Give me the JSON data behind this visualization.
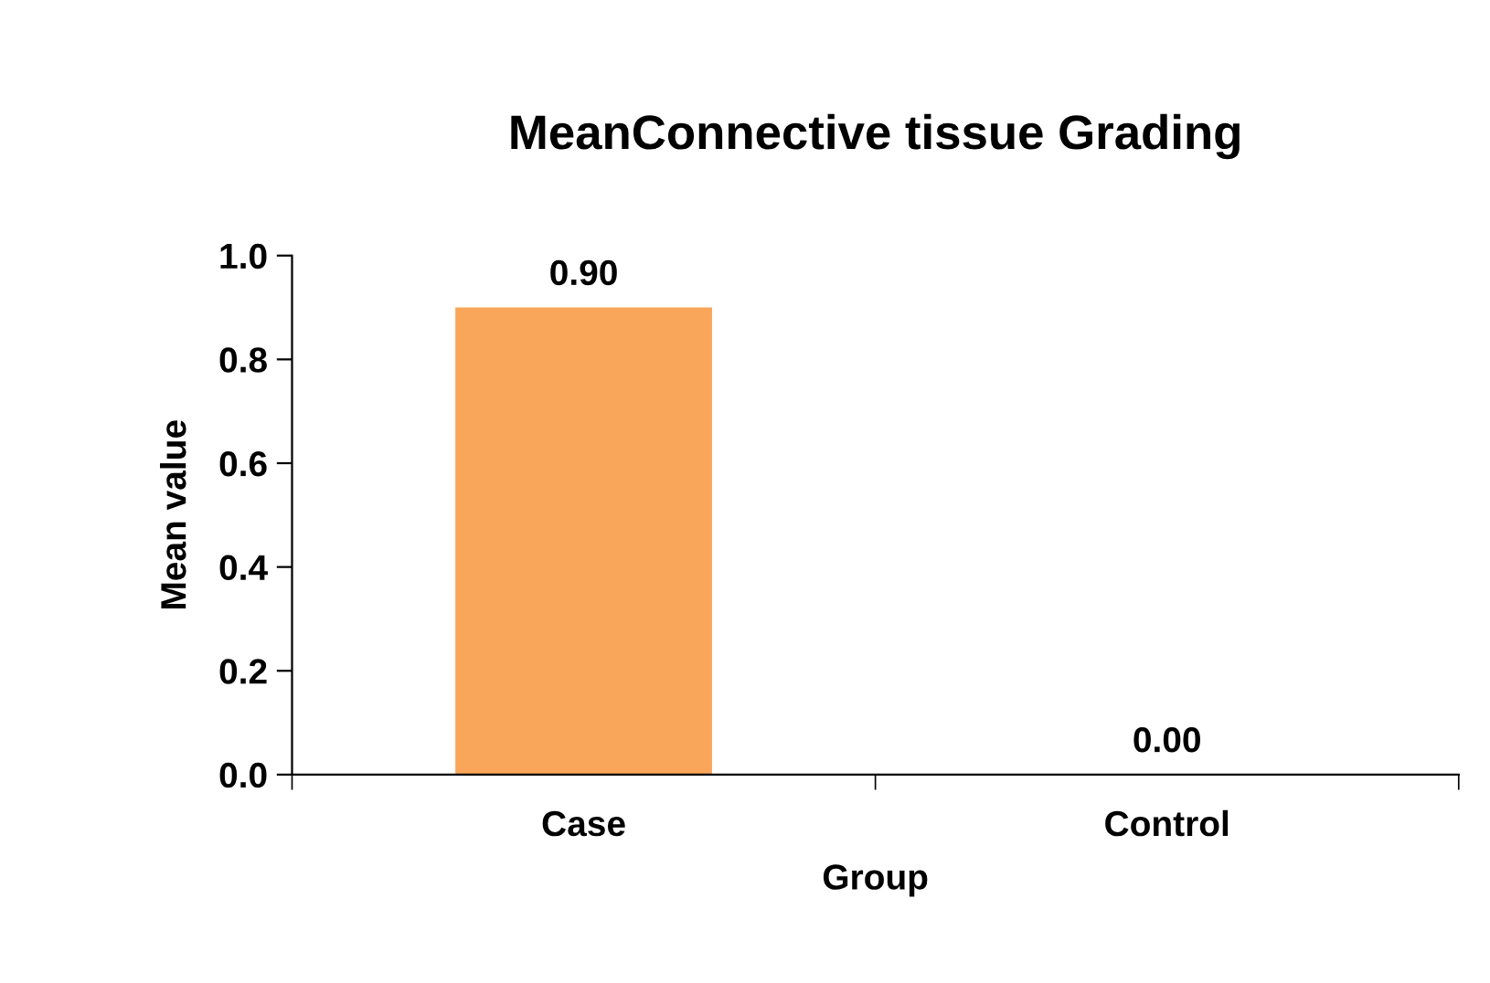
{
  "chart_data": {
    "type": "bar",
    "title": "MeanConnective tissue Grading",
    "xlabel": "Group",
    "ylabel": "Mean value",
    "categories": [
      "Case",
      "Control"
    ],
    "values": [
      0.9,
      0.0
    ],
    "color": "#f9a65a",
    "value_labels": [
      "0.90",
      "0.00"
    ],
    "ylim": [
      0,
      1.0
    ],
    "yticks": [
      {
        "value": 0,
        "label": "0.0"
      },
      {
        "value": 0.2,
        "label": "0.2"
      },
      {
        "value": 0.4,
        "label": "0.4"
      },
      {
        "value": 0.6,
        "label": "0.6"
      },
      {
        "value": 0.8,
        "label": "0.8"
      },
      {
        "value": 1.0,
        "label": "1.0"
      }
    ],
    "grid": false,
    "legend": false
  }
}
